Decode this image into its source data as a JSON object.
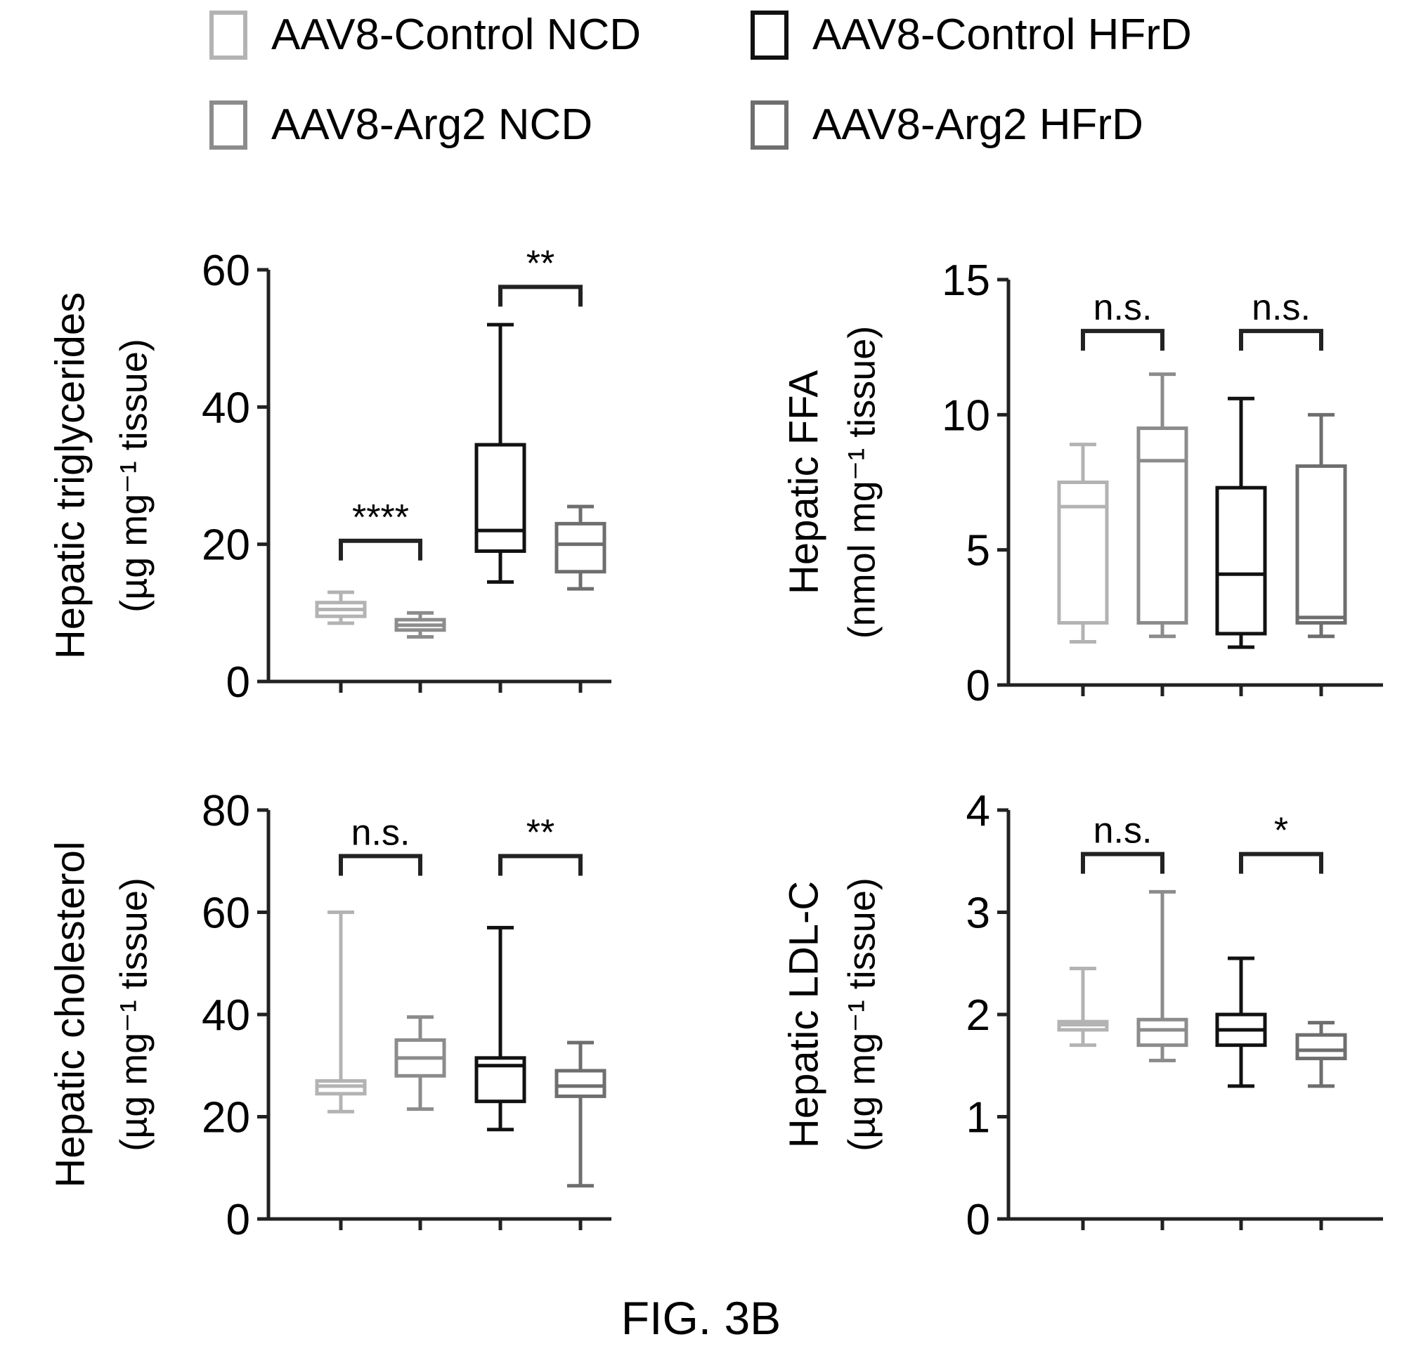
{
  "legend": [
    {
      "label": "AAV8-Control NCD",
      "color": "#b3b3b3"
    },
    {
      "label": "AAV8-Control HFrD",
      "color": "#111111"
    },
    {
      "label": "AAV8-Arg2 NCD",
      "color": "#8c8c8c"
    },
    {
      "label": "AAV8-Arg2 HFrD",
      "color": "#6e6e6e"
    }
  ],
  "caption": "FIG. 3B",
  "chart_data": [
    {
      "type": "box",
      "ylabel": "Hepatic triglycerides",
      "yunit": "(µg mg⁻¹ tissue)",
      "ylim": [
        0,
        60
      ],
      "yticks": [
        0,
        20,
        40,
        60
      ],
      "groups": [
        "AAV8-Control NCD",
        "AAV8-Arg2 NCD",
        "AAV8-Control HFrD",
        "AAV8-Arg2 HFrD"
      ],
      "boxes": [
        {
          "min": 8.5,
          "q1": 9.5,
          "median": 10.5,
          "q3": 11.5,
          "max": 13
        },
        {
          "min": 6.5,
          "q1": 7.5,
          "median": 8.2,
          "q3": 9,
          "max": 10
        },
        {
          "min": 14.5,
          "q1": 19,
          "median": 22,
          "q3": 34.5,
          "max": 52
        },
        {
          "min": 13.5,
          "q1": 16,
          "median": 20,
          "q3": 23,
          "max": 25.5
        }
      ],
      "significance": [
        {
          "pair": [
            0,
            1
          ],
          "label": "****",
          "y": 20.5
        },
        {
          "pair": [
            2,
            3
          ],
          "label": "**",
          "y": 57.5
        }
      ]
    },
    {
      "type": "box",
      "ylabel": "Hepatic FFA",
      "yunit": "(nmol mg⁻¹ tissue)",
      "ylim": [
        0,
        15
      ],
      "yticks": [
        0,
        5,
        10,
        15
      ],
      "groups": [
        "AAV8-Control NCD",
        "AAV8-Arg2 NCD",
        "AAV8-Control HFrD",
        "AAV8-Arg2 HFrD"
      ],
      "boxes": [
        {
          "min": 1.6,
          "q1": 2.3,
          "median": 6.6,
          "q3": 7.5,
          "max": 8.9
        },
        {
          "min": 1.8,
          "q1": 2.3,
          "median": 8.3,
          "q3": 9.5,
          "max": 11.5
        },
        {
          "min": 1.4,
          "q1": 1.9,
          "median": 4.1,
          "q3": 7.3,
          "max": 10.6
        },
        {
          "min": 1.8,
          "q1": 2.3,
          "median": 2.5,
          "q3": 8.1,
          "max": 10
        }
      ],
      "significance": [
        {
          "pair": [
            0,
            1
          ],
          "label": "n.s.",
          "y": 13.1
        },
        {
          "pair": [
            2,
            3
          ],
          "label": "n.s.",
          "y": 13.1
        }
      ]
    },
    {
      "type": "box",
      "ylabel": "Hepatic cholesterol",
      "yunit": "(µg mg⁻¹ tissue)",
      "ylim": [
        0,
        80
      ],
      "yticks": [
        0,
        20,
        40,
        60,
        80
      ],
      "groups": [
        "AAV8-Control NCD",
        "AAV8-Arg2 NCD",
        "AAV8-Control HFrD",
        "AAV8-Arg2 HFrD"
      ],
      "boxes": [
        {
          "min": 21,
          "q1": 24.5,
          "median": 26,
          "q3": 27,
          "max": 60
        },
        {
          "min": 21.5,
          "q1": 28,
          "median": 31.5,
          "q3": 35,
          "max": 39.5
        },
        {
          "min": 17.5,
          "q1": 23,
          "median": 30,
          "q3": 31.5,
          "max": 57
        },
        {
          "min": 6.5,
          "q1": 24,
          "median": 26,
          "q3": 29,
          "max": 34.5
        }
      ],
      "significance": [
        {
          "pair": [
            0,
            1
          ],
          "label": "n.s.",
          "y": 71
        },
        {
          "pair": [
            2,
            3
          ],
          "label": "**",
          "y": 71
        }
      ]
    },
    {
      "type": "box",
      "ylabel": "Hepatic LDL-C",
      "yunit": "(µg mg⁻¹ tissue)",
      "ylim": [
        0,
        4
      ],
      "yticks": [
        0,
        1,
        2,
        3,
        4
      ],
      "groups": [
        "AAV8-Control NCD",
        "AAV8-Arg2 NCD",
        "AAV8-Control HFrD",
        "AAV8-Arg2 HFrD"
      ],
      "boxes": [
        {
          "min": 1.7,
          "q1": 1.85,
          "median": 1.9,
          "q3": 1.93,
          "max": 2.45
        },
        {
          "min": 1.55,
          "q1": 1.7,
          "median": 1.85,
          "q3": 1.95,
          "max": 3.2
        },
        {
          "min": 1.3,
          "q1": 1.7,
          "median": 1.85,
          "q3": 2,
          "max": 2.55
        },
        {
          "min": 1.3,
          "q1": 1.57,
          "median": 1.65,
          "q3": 1.8,
          "max": 1.92
        }
      ],
      "significance": [
        {
          "pair": [
            0,
            1
          ],
          "label": "n.s.",
          "y": 3.57
        },
        {
          "pair": [
            2,
            3
          ],
          "label": "*",
          "y": 3.57
        }
      ]
    }
  ]
}
